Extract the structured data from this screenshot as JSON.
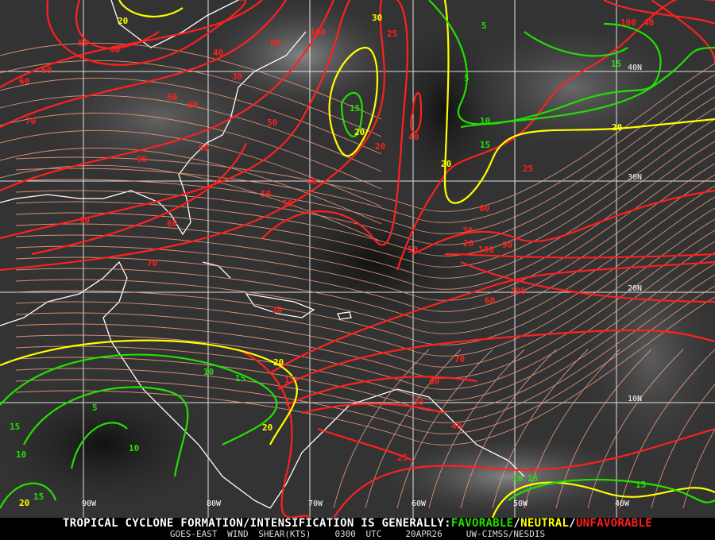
{
  "footer": {
    "headline": "TROPICAL CYCLONE FORMATION/INTENSIFICATION IS GENERALLY:",
    "favorable": "FAVORABLE",
    "sep1": "/",
    "neutral": "NEUTRAL",
    "sep2": "/",
    "unfavorable": "UNFAVORABLE",
    "product": "GOES-EAST WIND SHEAR(KTS)",
    "time": "0300 UTC",
    "date": "20APR26",
    "source": "UW-CIMSS/NESDIS"
  },
  "colors": {
    "favorable": "#22e000",
    "neutral": "#ffff00",
    "unfavorable": "#ff2020",
    "streamline": "#f0a080",
    "coast": "#ffffff",
    "grid": "#ffffff"
  },
  "grid": {
    "longitudes": [
      "90W",
      "80W",
      "70W",
      "60W",
      "50W",
      "40W"
    ],
    "latitudes": [
      "40N",
      "30N",
      "20N",
      "10N"
    ]
  },
  "contour_labels": [
    "20",
    "50",
    "40",
    "40",
    "90",
    "100",
    "30",
    "25",
    "5",
    "100",
    "40",
    "60",
    "60",
    "50",
    "30",
    "50",
    "60",
    "10",
    "15",
    "70",
    "90",
    "60",
    "50",
    "15",
    "20",
    "20",
    "20",
    "5",
    "15",
    "20",
    "90",
    "40",
    "25",
    "60",
    "40",
    "70",
    "50",
    "20",
    "50",
    "30",
    "60",
    "100",
    "90",
    "30",
    "60",
    "100",
    "70",
    "60",
    "30",
    "40",
    "25",
    "10",
    "15",
    "20",
    "5",
    "15",
    "10",
    "10",
    "15",
    "20",
    "15",
    "10",
    "15",
    "20",
    "15"
  ]
}
